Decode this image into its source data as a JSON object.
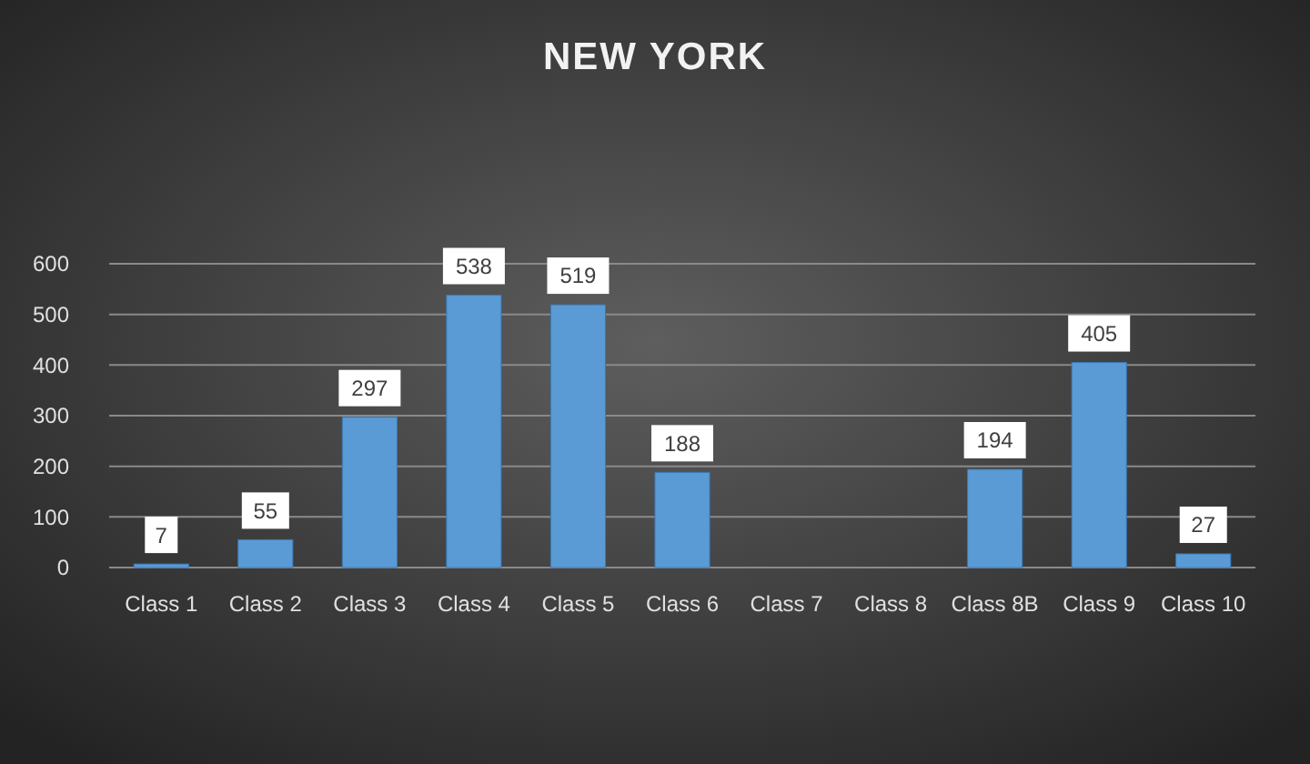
{
  "chart_data": {
    "type": "bar",
    "title": "NEW YORK",
    "categories": [
      "Class 1",
      "Class 2",
      "Class 3",
      "Class 4",
      "Class 5",
      "Class 6",
      "Class 7",
      "Class 8",
      "Class 8B",
      "Class 9",
      "Class 10"
    ],
    "values": [
      7,
      55,
      297,
      538,
      519,
      188,
      null,
      null,
      194,
      405,
      27
    ],
    "color": "#5b9bd5",
    "ylim": [
      0,
      600
    ],
    "yticks": [
      0,
      100,
      200,
      300,
      400,
      500,
      600
    ],
    "grid": "y",
    "data_labels": true
  }
}
